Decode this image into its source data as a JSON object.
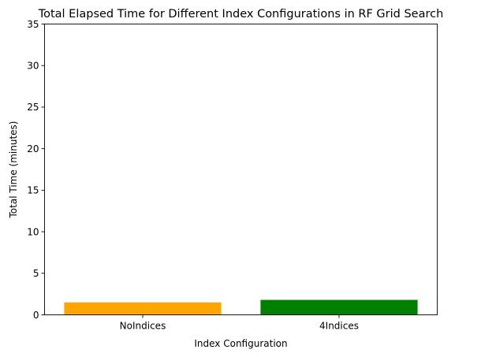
{
  "chart_data": {
    "type": "bar",
    "title": "Total Elapsed Time for Different Index Configurations in RF Grid Search",
    "xlabel": "Index Configuration",
    "ylabel": "Total Time (minutes)",
    "categories": [
      "NoIndices",
      "4Indices"
    ],
    "values": [
      1.5,
      1.8
    ],
    "bar_colors": [
      "#ffa500",
      "#008000"
    ],
    "ylim": [
      0,
      35
    ],
    "yticks": [
      0,
      5,
      10,
      15,
      20,
      25,
      30,
      35
    ],
    "grid": false,
    "legend": "none"
  }
}
